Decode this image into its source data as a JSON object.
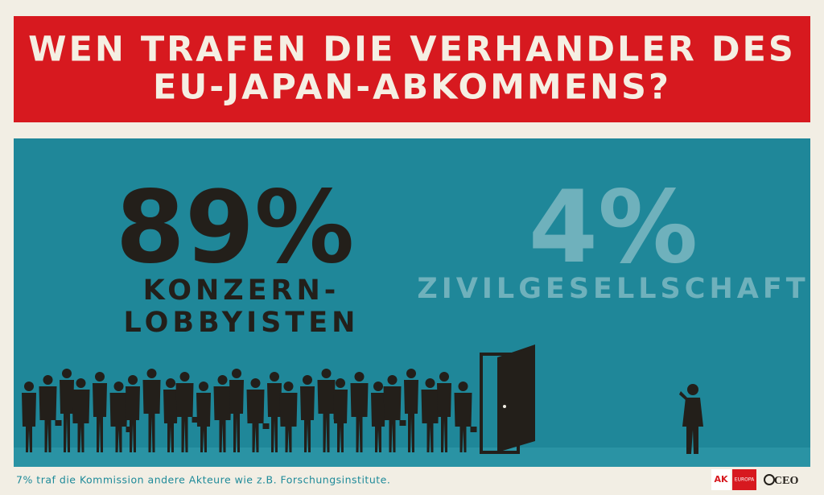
{
  "header": {
    "title_lines": [
      "WEN TRAFEN DIE VERHANDLER DES",
      "EU-JAPAN-ABKOMMENS?"
    ]
  },
  "left": {
    "figure": "89%",
    "label_lines": [
      "KONZERN-",
      "LOBBYISTEN"
    ]
  },
  "right": {
    "figure": "4%",
    "label": "ZIVILGESELLSCHAFT"
  },
  "footnote": "7% traf die Kommission andere Akteure wie z.B. Forschungsinstitute.",
  "logos": {
    "ak": "AK",
    "ak_sub": "EUROPA",
    "ceo": "CEO"
  }
}
